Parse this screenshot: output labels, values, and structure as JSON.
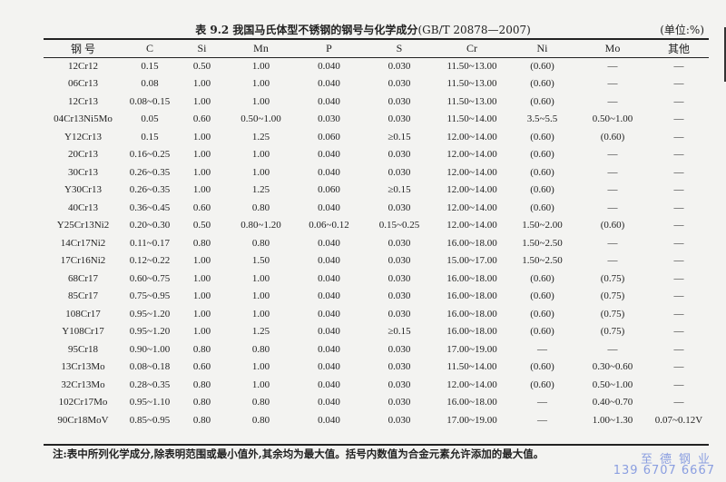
{
  "title": {
    "label": "表 9.2  我国马氏体型不锈钢的钢号与化学成分",
    "standard": "(GB/T 20878—2007)"
  },
  "unit": "(单位:%)",
  "columns": [
    "钢 号",
    "C",
    "Si",
    "Mn",
    "P",
    "S",
    "Cr",
    "Ni",
    "Mo",
    "其他"
  ],
  "rows": [
    [
      "12Cr12",
      "0.15",
      "0.50",
      "1.00",
      "0.040",
      "0.030",
      "11.50~13.00",
      "(0.60)",
      "—",
      "—"
    ],
    [
      "06Cr13",
      "0.08",
      "1.00",
      "1.00",
      "0.040",
      "0.030",
      "11.50~13.00",
      "(0.60)",
      "—",
      "—"
    ],
    [
      "12Cr13",
      "0.08~0.15",
      "1.00",
      "1.00",
      "0.040",
      "0.030",
      "11.50~13.00",
      "(0.60)",
      "—",
      "—"
    ],
    [
      "04Cr13Ni5Mo",
      "0.05",
      "0.60",
      "0.50~1.00",
      "0.030",
      "0.030",
      "11.50~14.00",
      "3.5~5.5",
      "0.50~1.00",
      "—"
    ],
    [
      "Y12Cr13",
      "0.15",
      "1.00",
      "1.25",
      "0.060",
      "≥0.15",
      "12.00~14.00",
      "(0.60)",
      "(0.60)",
      "—"
    ],
    [
      "20Cr13",
      "0.16~0.25",
      "1.00",
      "1.00",
      "0.040",
      "0.030",
      "12.00~14.00",
      "(0.60)",
      "—",
      "—"
    ],
    [
      "30Cr13",
      "0.26~0.35",
      "1.00",
      "1.00",
      "0.040",
      "0.030",
      "12.00~14.00",
      "(0.60)",
      "—",
      "—"
    ],
    [
      "Y30Cr13",
      "0.26~0.35",
      "1.00",
      "1.25",
      "0.060",
      "≥0.15",
      "12.00~14.00",
      "(0.60)",
      "—",
      "—"
    ],
    [
      "40Cr13",
      "0.36~0.45",
      "0.60",
      "0.80",
      "0.040",
      "0.030",
      "12.00~14.00",
      "(0.60)",
      "—",
      "—"
    ],
    [
      "Y25Cr13Ni2",
      "0.20~0.30",
      "0.50",
      "0.80~1.20",
      "0.06~0.12",
      "0.15~0.25",
      "12.00~14.00",
      "1.50~2.00",
      "(0.60)",
      "—"
    ],
    [
      "14Cr17Ni2",
      "0.11~0.17",
      "0.80",
      "0.80",
      "0.040",
      "0.030",
      "16.00~18.00",
      "1.50~2.50",
      "—",
      "—"
    ],
    [
      "17Cr16Ni2",
      "0.12~0.22",
      "1.00",
      "1.50",
      "0.040",
      "0.030",
      "15.00~17.00",
      "1.50~2.50",
      "—",
      "—"
    ],
    [
      "68Cr17",
      "0.60~0.75",
      "1.00",
      "1.00",
      "0.040",
      "0.030",
      "16.00~18.00",
      "(0.60)",
      "(0.75)",
      "—"
    ],
    [
      "85Cr17",
      "0.75~0.95",
      "1.00",
      "1.00",
      "0.040",
      "0.030",
      "16.00~18.00",
      "(0.60)",
      "(0.75)",
      "—"
    ],
    [
      "108Cr17",
      "0.95~1.20",
      "1.00",
      "1.00",
      "0.040",
      "0.030",
      "16.00~18.00",
      "(0.60)",
      "(0.75)",
      "—"
    ],
    [
      "Y108Cr17",
      "0.95~1.20",
      "1.00",
      "1.25",
      "0.040",
      "≥0.15",
      "16.00~18.00",
      "(0.60)",
      "(0.75)",
      "—"
    ],
    [
      "95Cr18",
      "0.90~1.00",
      "0.80",
      "0.80",
      "0.040",
      "0.030",
      "17.00~19.00",
      "—",
      "—",
      "—"
    ],
    [
      "13Cr13Mo",
      "0.08~0.18",
      "0.60",
      "1.00",
      "0.040",
      "0.030",
      "11.50~14.00",
      "(0.60)",
      "0.30~0.60",
      "—"
    ],
    [
      "32Cr13Mo",
      "0.28~0.35",
      "0.80",
      "1.00",
      "0.040",
      "0.030",
      "12.00~14.00",
      "(0.60)",
      "0.50~1.00",
      "—"
    ],
    [
      "102Cr17Mo",
      "0.95~1.10",
      "0.80",
      "0.80",
      "0.040",
      "0.030",
      "16.00~18.00",
      "—",
      "0.40~0.70",
      "—"
    ],
    [
      "90Cr18MoV",
      "0.85~0.95",
      "0.80",
      "0.80",
      "0.040",
      "0.030",
      "17.00~19.00",
      "—",
      "1.00~1.30",
      "0.07~0.12V"
    ]
  ],
  "note": "注:表中所列化学成分,除表明范围或最小值外,其余均为最大值。括号内数值为合金元素允许添加的最大值。",
  "watermark": {
    "name": "至德钢业",
    "phone": "139 6707 6667",
    "color": "#8a9ee0"
  }
}
